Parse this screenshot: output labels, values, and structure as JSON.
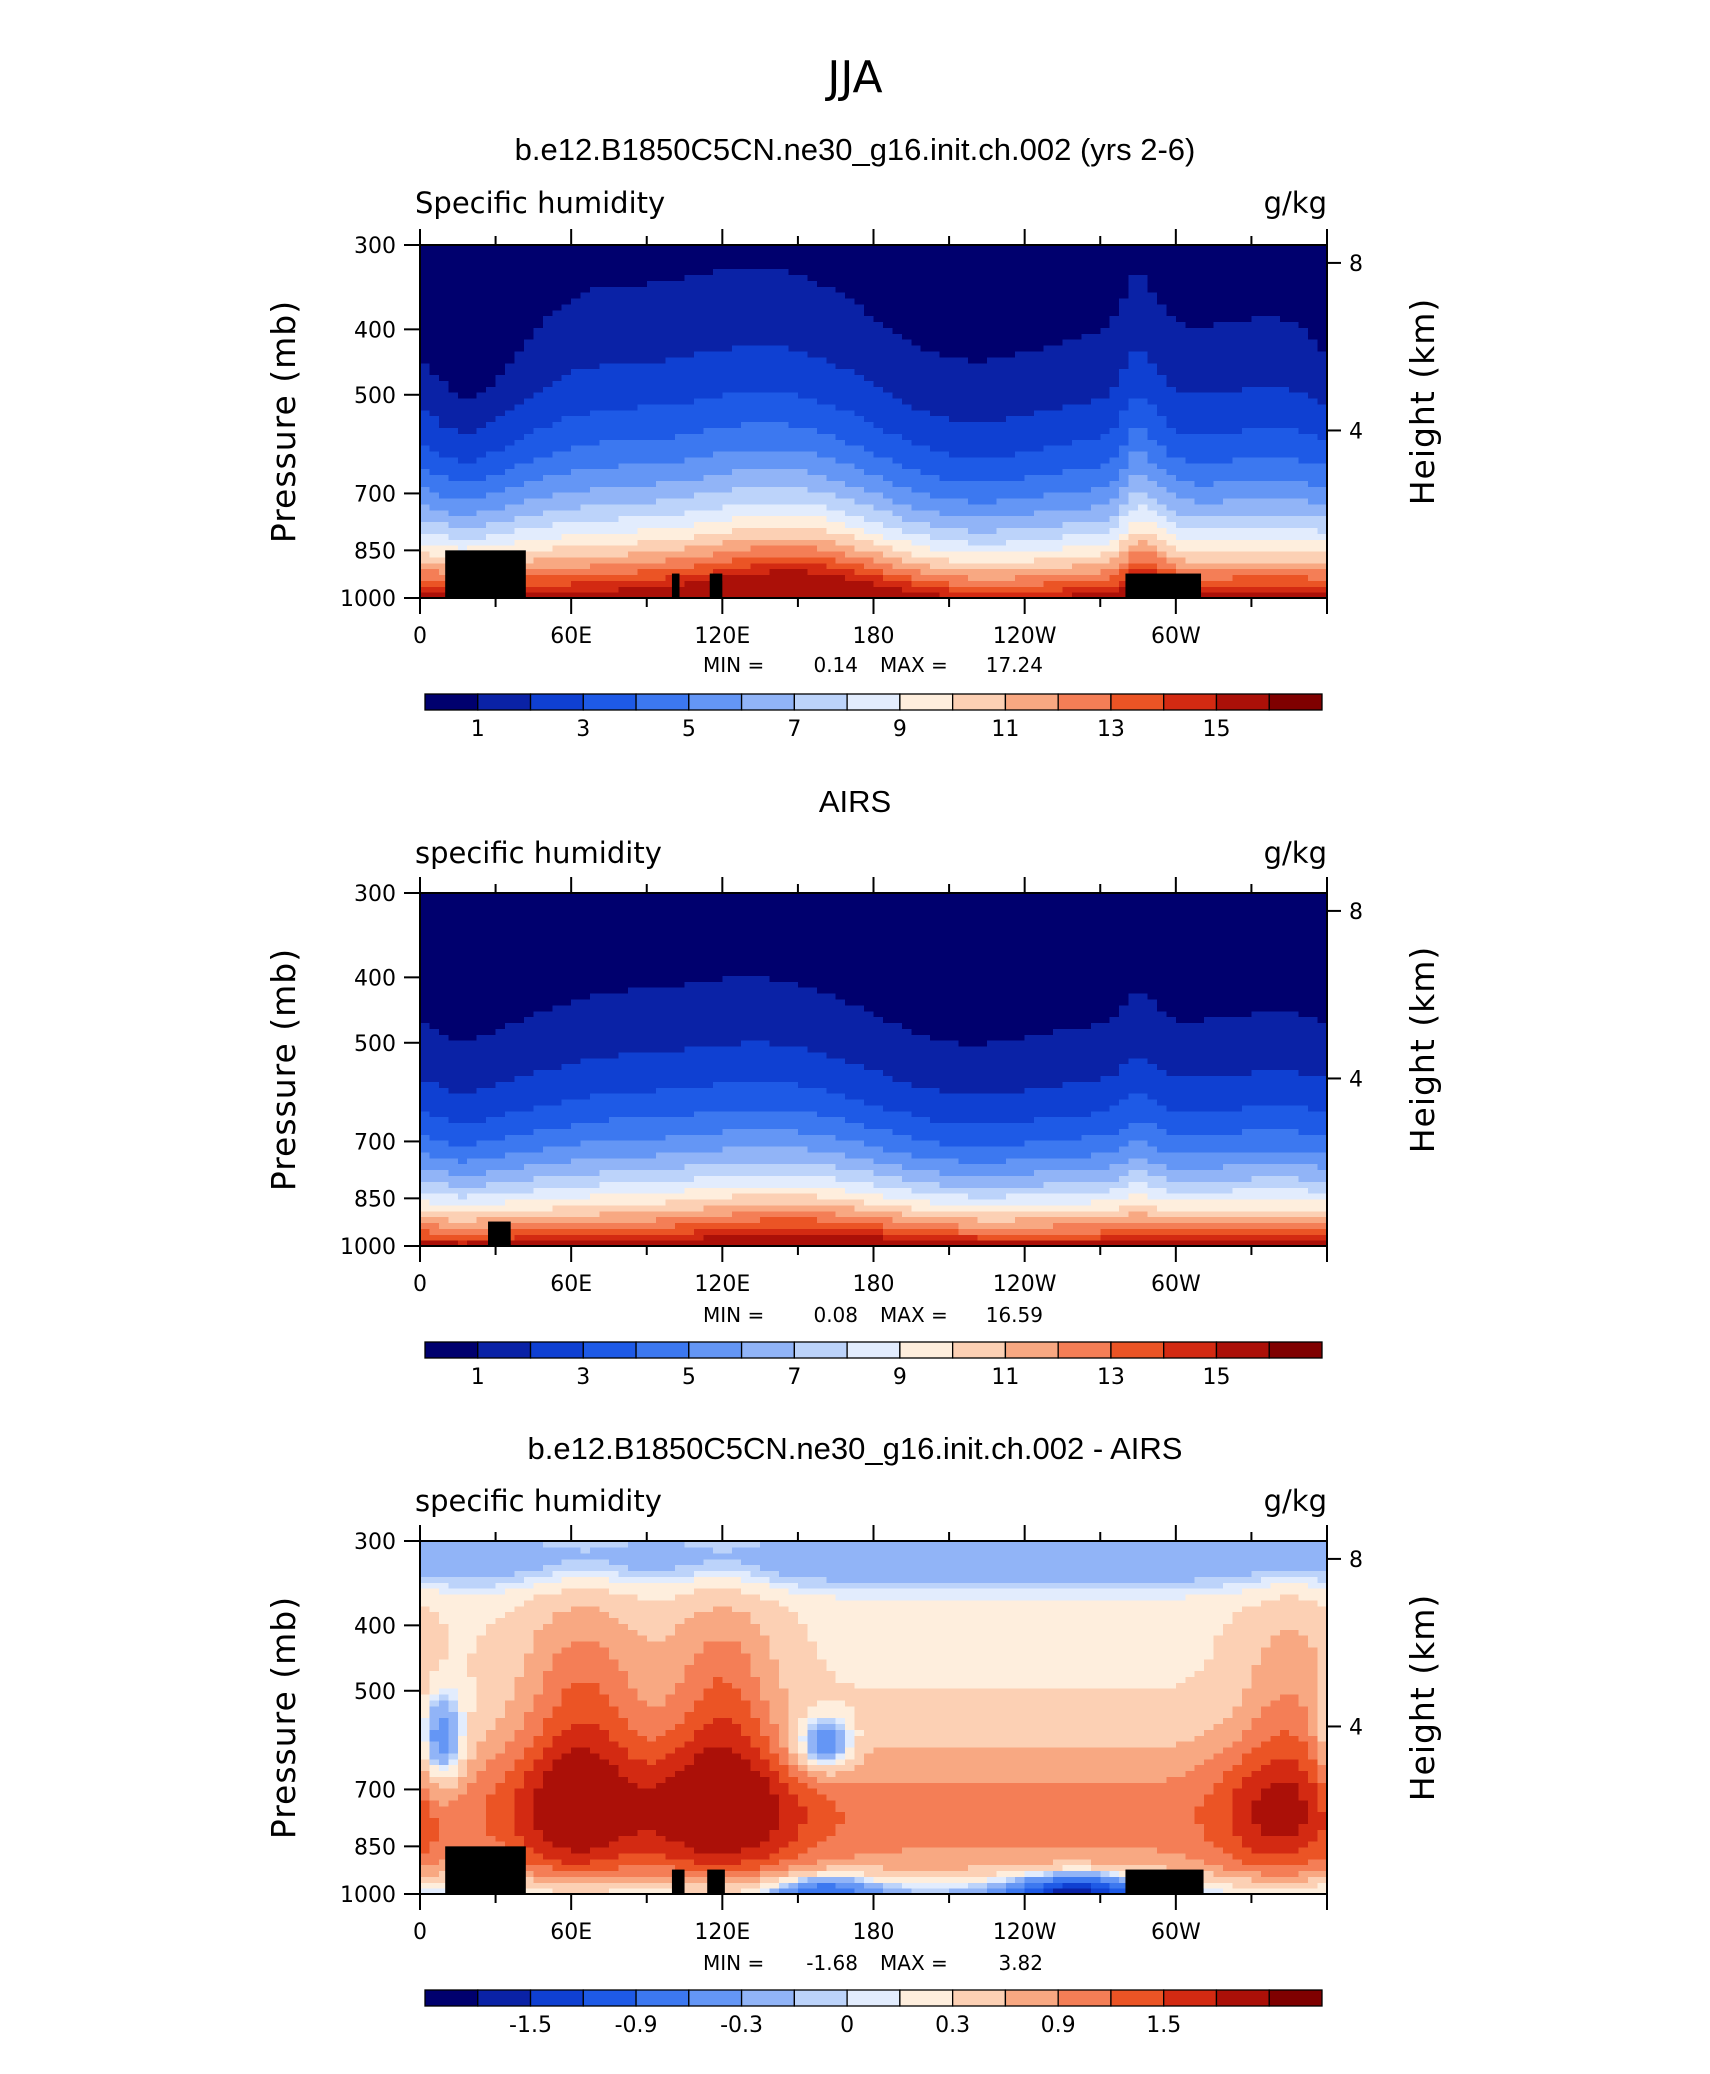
{
  "figure": {
    "title": "JJA"
  },
  "chart_data": [
    {
      "type": "heatmap",
      "title": "b.e12.B1850C5CN.ne30_g16.init.ch.002 (yrs 2-6)",
      "left_label": "Specific humidity",
      "right_label": "g/kg",
      "ylabel": "Pressure (mb)",
      "ylabel_right": "Height (km)",
      "x_ticks": [
        "0",
        "60E",
        "120E",
        "180",
        "120W",
        "60W"
      ],
      "y_ticks": [
        "300",
        "400",
        "500",
        "700",
        "850",
        "1000"
      ],
      "y_ticks_right": [
        "8",
        "4"
      ],
      "xlim": [
        0,
        360
      ],
      "ylim": [
        1000,
        300
      ],
      "log_pressure": true,
      "min_label": "MIN =",
      "min_value": "0.14",
      "max_label": "MAX =",
      "max_value": "17.24",
      "field": "model",
      "colorbar": {
        "labels": [
          "1",
          "3",
          "5",
          "7",
          "9",
          "11",
          "13",
          "15"
        ],
        "levels": [
          1,
          2,
          3,
          4,
          5,
          6,
          7,
          8,
          9,
          10,
          11,
          12,
          13,
          14,
          15
        ],
        "label_every": 2
      },
      "masks_lon_p": [
        [
          10,
          42,
          1000,
          850
        ],
        [
          100,
          103,
          1000,
          920
        ],
        [
          115,
          120,
          1000,
          920
        ],
        [
          280,
          310,
          1000,
          920
        ]
      ]
    },
    {
      "type": "heatmap",
      "title": "AIRS",
      "left_label": "specific humidity",
      "right_label": "g/kg",
      "ylabel": "Pressure (mb)",
      "ylabel_right": "Height (km)",
      "x_ticks": [
        "0",
        "60E",
        "120E",
        "180",
        "120W",
        "60W"
      ],
      "y_ticks": [
        "300",
        "400",
        "500",
        "700",
        "850",
        "1000"
      ],
      "y_ticks_right": [
        "8",
        "4"
      ],
      "xlim": [
        0,
        360
      ],
      "ylim": [
        1000,
        300
      ],
      "log_pressure": true,
      "min_label": "MIN =",
      "min_value": "0.08",
      "max_label": "MAX =",
      "max_value": "16.59",
      "field": "obs",
      "colorbar": {
        "labels": [
          "1",
          "3",
          "5",
          "7",
          "9",
          "11",
          "13",
          "15"
        ],
        "levels": [
          1,
          2,
          3,
          4,
          5,
          6,
          7,
          8,
          9,
          10,
          11,
          12,
          13,
          14,
          15
        ],
        "label_every": 2
      },
      "masks_lon_p": [
        [
          27,
          36,
          1000,
          920
        ]
      ]
    },
    {
      "type": "heatmap",
      "title": "b.e12.B1850C5CN.ne30_g16.init.ch.002 - AIRS",
      "left_label": "specific humidity",
      "right_label": "g/kg",
      "ylabel": "Pressure (mb)",
      "ylabel_right": "Height (km)",
      "x_ticks": [
        "0",
        "60E",
        "120E",
        "180",
        "120W",
        "60W"
      ],
      "y_ticks": [
        "300",
        "400",
        "500",
        "700",
        "850",
        "1000"
      ],
      "y_ticks_right": [
        "8",
        "4"
      ],
      "xlim": [
        0,
        360
      ],
      "ylim": [
        1000,
        300
      ],
      "log_pressure": true,
      "min_label": "MIN =",
      "min_value": "-1.68",
      "max_label": "MAX =",
      "max_value": "3.82",
      "field": "diff",
      "colorbar": {
        "labels": [
          "-1.5",
          "-0.9",
          "-0.3",
          "0",
          "0.3",
          "0.9",
          "1.5"
        ],
        "levels": [
          -1.8,
          -1.5,
          -1.2,
          -0.9,
          -0.6,
          -0.3,
          -0.1,
          0,
          0.1,
          0.3,
          0.6,
          0.9,
          1.2,
          1.5,
          1.8
        ],
        "label_positions": [
          1,
          3,
          5,
          7,
          9,
          11,
          13
        ]
      },
      "masks_lon_p": [
        [
          10,
          42,
          1000,
          850
        ],
        [
          100,
          105,
          1000,
          920
        ],
        [
          114,
          121,
          1000,
          920
        ],
        [
          280,
          311,
          1000,
          920
        ]
      ]
    }
  ],
  "colors": {
    "palette": [
      "#00006e",
      "#0a22a6",
      "#0f40d2",
      "#1e5ae6",
      "#3c78f0",
      "#6496f5",
      "#91b4f7",
      "#bcd3fa",
      "#e2ecfd",
      "#feeedd",
      "#fcd0b4",
      "#f8a882",
      "#f47e56",
      "#eb5425",
      "#d32a12",
      "#ab1008",
      "#7f0000"
    ],
    "mask": "#000000"
  }
}
